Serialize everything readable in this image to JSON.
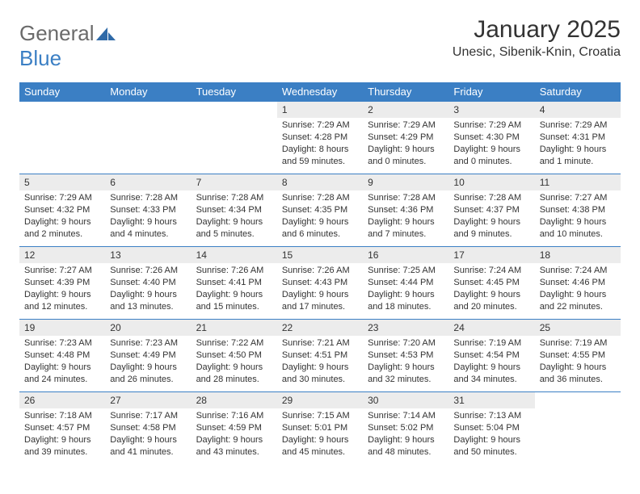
{
  "brand": {
    "word1": "General",
    "word2": "Blue"
  },
  "title": "January 2025",
  "location": "Unesic, Sibenik-Knin, Croatia",
  "colors": {
    "header_bg": "#3b7fc4",
    "header_text": "#ffffff",
    "daynum_bg": "#ececec",
    "text": "#333333",
    "logo_gray": "#6a6a6a",
    "logo_blue": "#3b7fc4",
    "page_bg": "#ffffff"
  },
  "weekdays": [
    "Sunday",
    "Monday",
    "Tuesday",
    "Wednesday",
    "Thursday",
    "Friday",
    "Saturday"
  ],
  "leading_blanks": 3,
  "days": [
    {
      "n": 1,
      "sunrise": "7:29 AM",
      "sunset": "4:28 PM",
      "daylight": "8 hours and 59 minutes."
    },
    {
      "n": 2,
      "sunrise": "7:29 AM",
      "sunset": "4:29 PM",
      "daylight": "9 hours and 0 minutes."
    },
    {
      "n": 3,
      "sunrise": "7:29 AM",
      "sunset": "4:30 PM",
      "daylight": "9 hours and 0 minutes."
    },
    {
      "n": 4,
      "sunrise": "7:29 AM",
      "sunset": "4:31 PM",
      "daylight": "9 hours and 1 minute."
    },
    {
      "n": 5,
      "sunrise": "7:29 AM",
      "sunset": "4:32 PM",
      "daylight": "9 hours and 2 minutes."
    },
    {
      "n": 6,
      "sunrise": "7:28 AM",
      "sunset": "4:33 PM",
      "daylight": "9 hours and 4 minutes."
    },
    {
      "n": 7,
      "sunrise": "7:28 AM",
      "sunset": "4:34 PM",
      "daylight": "9 hours and 5 minutes."
    },
    {
      "n": 8,
      "sunrise": "7:28 AM",
      "sunset": "4:35 PM",
      "daylight": "9 hours and 6 minutes."
    },
    {
      "n": 9,
      "sunrise": "7:28 AM",
      "sunset": "4:36 PM",
      "daylight": "9 hours and 7 minutes."
    },
    {
      "n": 10,
      "sunrise": "7:28 AM",
      "sunset": "4:37 PM",
      "daylight": "9 hours and 9 minutes."
    },
    {
      "n": 11,
      "sunrise": "7:27 AM",
      "sunset": "4:38 PM",
      "daylight": "9 hours and 10 minutes."
    },
    {
      "n": 12,
      "sunrise": "7:27 AM",
      "sunset": "4:39 PM",
      "daylight": "9 hours and 12 minutes."
    },
    {
      "n": 13,
      "sunrise": "7:26 AM",
      "sunset": "4:40 PM",
      "daylight": "9 hours and 13 minutes."
    },
    {
      "n": 14,
      "sunrise": "7:26 AM",
      "sunset": "4:41 PM",
      "daylight": "9 hours and 15 minutes."
    },
    {
      "n": 15,
      "sunrise": "7:26 AM",
      "sunset": "4:43 PM",
      "daylight": "9 hours and 17 minutes."
    },
    {
      "n": 16,
      "sunrise": "7:25 AM",
      "sunset": "4:44 PM",
      "daylight": "9 hours and 18 minutes."
    },
    {
      "n": 17,
      "sunrise": "7:24 AM",
      "sunset": "4:45 PM",
      "daylight": "9 hours and 20 minutes."
    },
    {
      "n": 18,
      "sunrise": "7:24 AM",
      "sunset": "4:46 PM",
      "daylight": "9 hours and 22 minutes."
    },
    {
      "n": 19,
      "sunrise": "7:23 AM",
      "sunset": "4:48 PM",
      "daylight": "9 hours and 24 minutes."
    },
    {
      "n": 20,
      "sunrise": "7:23 AM",
      "sunset": "4:49 PM",
      "daylight": "9 hours and 26 minutes."
    },
    {
      "n": 21,
      "sunrise": "7:22 AM",
      "sunset": "4:50 PM",
      "daylight": "9 hours and 28 minutes."
    },
    {
      "n": 22,
      "sunrise": "7:21 AM",
      "sunset": "4:51 PM",
      "daylight": "9 hours and 30 minutes."
    },
    {
      "n": 23,
      "sunrise": "7:20 AM",
      "sunset": "4:53 PM",
      "daylight": "9 hours and 32 minutes."
    },
    {
      "n": 24,
      "sunrise": "7:19 AM",
      "sunset": "4:54 PM",
      "daylight": "9 hours and 34 minutes."
    },
    {
      "n": 25,
      "sunrise": "7:19 AM",
      "sunset": "4:55 PM",
      "daylight": "9 hours and 36 minutes."
    },
    {
      "n": 26,
      "sunrise": "7:18 AM",
      "sunset": "4:57 PM",
      "daylight": "9 hours and 39 minutes."
    },
    {
      "n": 27,
      "sunrise": "7:17 AM",
      "sunset": "4:58 PM",
      "daylight": "9 hours and 41 minutes."
    },
    {
      "n": 28,
      "sunrise": "7:16 AM",
      "sunset": "4:59 PM",
      "daylight": "9 hours and 43 minutes."
    },
    {
      "n": 29,
      "sunrise": "7:15 AM",
      "sunset": "5:01 PM",
      "daylight": "9 hours and 45 minutes."
    },
    {
      "n": 30,
      "sunrise": "7:14 AM",
      "sunset": "5:02 PM",
      "daylight": "9 hours and 48 minutes."
    },
    {
      "n": 31,
      "sunrise": "7:13 AM",
      "sunset": "5:04 PM",
      "daylight": "9 hours and 50 minutes."
    }
  ],
  "labels": {
    "sunrise": "Sunrise:",
    "sunset": "Sunset:",
    "daylight": "Daylight:"
  }
}
